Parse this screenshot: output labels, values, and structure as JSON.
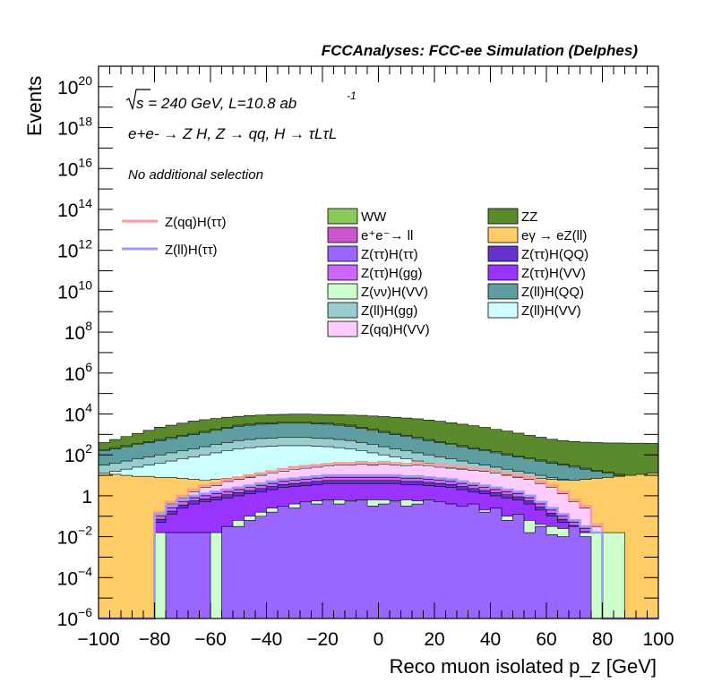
{
  "chart_data": {
    "type": "area",
    "title": "FCCAnalyses: FCC-ee Simulation (Delphes)",
    "xlabel": "Reco muon isolated p_z [GeV]",
    "ylabel": "Events",
    "xlim": [
      -100,
      100
    ],
    "ylim_log10": [
      -6,
      21
    ],
    "y_scale": "log",
    "x_ticks": [
      "−100",
      "−80",
      "−60",
      "−40",
      "−20",
      "0",
      "20",
      "40",
      "60",
      "80",
      "100"
    ],
    "y_ticks": [
      {
        "base": "10",
        "exp": "20",
        "log": 20
      },
      {
        "base": "10",
        "exp": "18",
        "log": 18
      },
      {
        "base": "10",
        "exp": "16",
        "log": 16
      },
      {
        "base": "10",
        "exp": "14",
        "log": 14
      },
      {
        "base": "10",
        "exp": "12",
        "log": 12
      },
      {
        "base": "10",
        "exp": "10",
        "log": 10
      },
      {
        "base": "10",
        "exp": "8",
        "log": 8
      },
      {
        "base": "10",
        "exp": "6",
        "log": 6
      },
      {
        "base": "10",
        "exp": "4",
        "log": 4
      },
      {
        "base": "10",
        "exp": "2",
        "log": 2
      },
      {
        "base": "1",
        "exp": "",
        "log": 0
      },
      {
        "base": "10",
        "exp": "−2",
        "log": -2
      },
      {
        "base": "10",
        "exp": "−4",
        "log": -4
      },
      {
        "base": "10",
        "exp": "−6",
        "log": -6
      }
    ],
    "annotations": {
      "energy": "s = 240 GeV, L=10.8 ab",
      "lumi_exp": "-1",
      "process": "e+e- → Z H, Z → qq, H → τLτL",
      "selection": "No additional selection"
    },
    "bin_edges": {
      "min": -100,
      "max": 100,
      "width": 4
    },
    "stack_log10_tops": [
      {
        "name": "Z(ll)H(QQ)",
        "color": "#5f9ea0",
        "values": [
          2.2,
          2.3,
          2.4,
          2.5,
          2.6,
          2.7,
          2.8,
          2.9,
          3.0,
          3.1,
          3.2,
          3.3,
          3.4,
          3.45,
          3.5,
          3.52,
          3.55,
          3.55,
          3.55,
          3.52,
          3.5,
          3.45,
          3.4,
          3.3,
          3.2,
          3.1,
          3.0,
          2.9,
          2.8,
          2.7,
          2.6,
          2.5,
          2.4,
          2.3,
          2.2,
          2.1,
          2.0,
          1.9,
          1.8,
          1.7,
          1.6,
          1.5,
          1.4,
          1.3,
          1.2,
          1.1,
          1.0,
          0.9,
          0.8,
          0.7
        ]
      },
      {
        "name": "ZZ",
        "color": "#5b8a2c",
        "values": [
          2.6,
          2.75,
          2.9,
          3.05,
          3.2,
          3.35,
          3.45,
          3.55,
          3.65,
          3.72,
          3.78,
          3.84,
          3.88,
          3.92,
          3.95,
          3.97,
          3.98,
          3.99,
          3.99,
          3.98,
          3.97,
          3.96,
          3.95,
          3.93,
          3.9,
          3.87,
          3.84,
          3.8,
          3.76,
          3.7,
          3.64,
          3.57,
          3.5,
          3.42,
          3.34,
          3.25,
          3.16,
          3.06,
          2.96,
          2.86,
          2.76,
          2.7,
          2.65,
          2.62,
          2.6,
          2.58,
          2.58,
          2.57,
          2.57,
          2.56
        ]
      }
    ],
    "series": [
      {
        "name": "WW",
        "color": "#88c95a"
      },
      {
        "name": "ZZ",
        "color": "#5b8a2c"
      },
      {
        "name": "e⁺e⁻→ ll",
        "color": "#cc55cc"
      },
      {
        "name": "eγ → eZ(ll)",
        "color": "#ffcc66"
      },
      {
        "name": "Z(ττ)H(ττ)",
        "color": "#9966ff"
      },
      {
        "name": "Z(ττ)H(QQ)",
        "color": "#6633cc"
      },
      {
        "name": "Z(ττ)H(gg)",
        "color": "#cc66ff"
      },
      {
        "name": "Z(ττ)H(VV)",
        "color": "#9933ff"
      },
      {
        "name": "Z(νν)H(VV)",
        "color": "#ccffcc"
      },
      {
        "name": "Z(ll)H(QQ)",
        "color": "#5f9ea0"
      },
      {
        "name": "Z(ll)H(gg)",
        "color": "#99cccc"
      },
      {
        "name": "Z(ll)H(VV)",
        "color": "#ccffff"
      },
      {
        "name": "Z(qq)H(VV)",
        "color": "#ffccff"
      }
    ],
    "signals": [
      {
        "name": "Z(qq)H(ττ)",
        "color": "#ff9999"
      },
      {
        "name": "Z(ll)H(ττ)",
        "color": "#9999ff"
      }
    ],
    "profiles_log10": {
      "tautau": [
        -6,
        -6,
        -6,
        -6,
        -6,
        -6,
        -1.8,
        -1.8,
        -1.8,
        -1.8,
        -6,
        -1.5,
        -1.5,
        -1.2,
        -1.0,
        -0.8,
        -0.5,
        -0.6,
        -0.3,
        -0.4,
        -0.2,
        -0.4,
        -0.3,
        -0.2,
        -0.5,
        -0.4,
        -0.3,
        -0.5,
        -0.4,
        -0.2,
        -0.3,
        -0.4,
        -0.5,
        -0.4,
        -0.8,
        -0.6,
        -1.2,
        -0.9,
        -1.8,
        -1.5,
        -1.9,
        -2.0,
        -1.5,
        -2.0,
        -6,
        -6,
        -6,
        -6,
        -6,
        -6
      ],
      "nunu": [
        -6,
        -6,
        -6,
        -6,
        -6,
        -1.8,
        -1.8,
        -1.8,
        -1.8,
        -1.8,
        -1.8,
        -1.5,
        -1.2,
        -1.0,
        -0.8,
        -0.6,
        -0.5,
        -0.4,
        -0.3,
        -0.25,
        -0.2,
        -0.2,
        -0.25,
        -0.2,
        -0.2,
        -0.2,
        -0.25,
        -0.2,
        -0.25,
        -0.3,
        -0.35,
        -0.4,
        -0.5,
        -0.6,
        -0.7,
        -0.6,
        -1.0,
        -1.0,
        -1.2,
        -1.4,
        -1.5,
        -1.6,
        -1.8,
        -1.8,
        -1.8,
        -1.8,
        -1.8,
        -6,
        -6,
        -6
      ],
      "egamma": [
        1.1,
        1.05,
        1.0,
        0.95,
        0.95,
        0.9,
        0.9,
        0.85,
        0.8,
        0.75,
        0.8,
        0.85,
        0.9,
        0.95,
        1.0,
        1.1,
        1.15,
        1.2,
        1.3,
        1.35,
        1.35,
        1.4,
        1.45,
        1.45,
        1.5,
        1.5,
        1.45,
        1.45,
        1.4,
        1.4,
        1.35,
        1.3,
        1.3,
        1.2,
        1.15,
        1.1,
        1.05,
        0.95,
        0.9,
        0.85,
        0.8,
        0.75,
        0.75,
        0.8,
        0.85,
        0.9,
        0.95,
        1.0,
        1.05,
        1.1
      ],
      "zqq": [
        -6,
        -6,
        -6,
        -6,
        -6,
        -0.8,
        -0.3,
        0.0,
        0.3,
        0.5,
        0.6,
        0.8,
        0.9,
        1.0,
        1.1,
        1.2,
        1.3,
        1.4,
        1.45,
        1.5,
        1.55,
        1.6,
        1.6,
        1.65,
        1.6,
        1.65,
        1.6,
        1.55,
        1.6,
        1.55,
        1.5,
        1.45,
        1.4,
        1.35,
        1.3,
        1.2,
        1.1,
        1.0,
        0.9,
        0.7,
        0.5,
        0.2,
        -0.2,
        -0.5,
        -1.4,
        -6,
        -6,
        -6,
        -6,
        -6
      ],
      "zll": [
        -6,
        -6,
        -6,
        -6,
        -6,
        -0.9,
        -0.5,
        -0.2,
        0.0,
        0.1,
        0.2,
        0.3,
        0.4,
        0.5,
        0.6,
        0.7,
        0.8,
        0.85,
        0.9,
        0.95,
        1.0,
        1.0,
        1.0,
        1.0,
        1.0,
        1.0,
        1.0,
        0.95,
        0.95,
        0.9,
        0.85,
        0.8,
        0.7,
        0.6,
        0.5,
        0.4,
        0.3,
        0.2,
        0.0,
        -0.3,
        -0.6,
        -0.9,
        -1.2,
        -1.5,
        -1.8,
        -6,
        -6,
        -6,
        -6,
        -6
      ]
    }
  }
}
